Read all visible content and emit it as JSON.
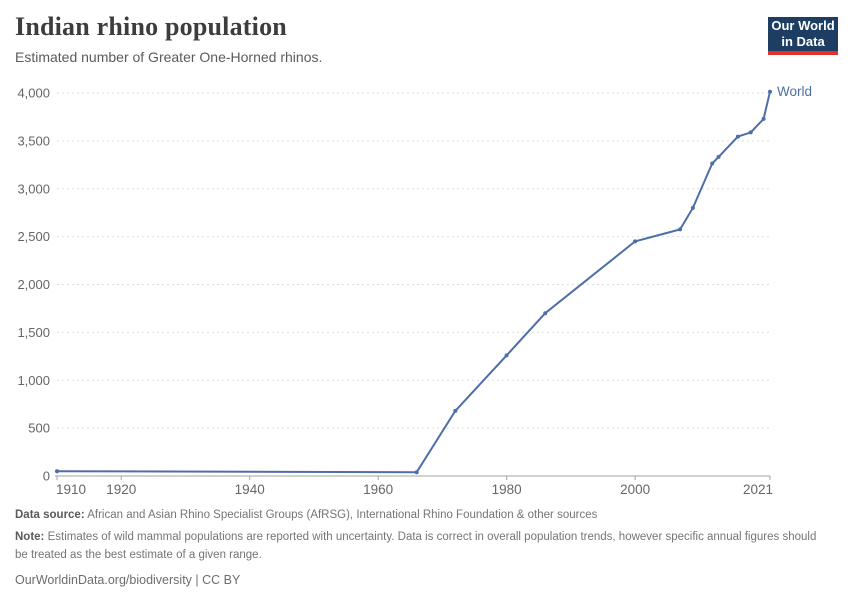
{
  "header": {
    "title": "Indian rhino population",
    "subtitle": "Estimated number of Greater One-Horned rhinos.",
    "logo": {
      "line1": "Our World",
      "line2": "in Data",
      "bg_color": "#1d3d63",
      "accent_color": "#e0342b"
    }
  },
  "chart_data": {
    "type": "line",
    "title": "Indian rhino population",
    "subtitle": "Estimated number of Greater One-Horned rhinos.",
    "xlabel": "",
    "ylabel": "",
    "xlim": [
      1910,
      2021
    ],
    "ylim": [
      0,
      4000
    ],
    "x_ticks": [
      1910,
      1920,
      1940,
      1960,
      1980,
      2000,
      2021
    ],
    "y_ticks": [
      0,
      500,
      1000,
      1500,
      2000,
      2500,
      3000,
      3500,
      4000
    ],
    "grid": "horizontal-dashed",
    "legend": "inline-label-at-line-end",
    "series": [
      {
        "name": "World",
        "color": "#4c6ea9",
        "points": [
          [
            1910,
            50
          ],
          [
            1966,
            40
          ],
          [
            1972,
            680
          ],
          [
            1980,
            1260
          ],
          [
            1986,
            1700
          ],
          [
            2000,
            2450
          ],
          [
            2007,
            2575
          ],
          [
            2009,
            2800
          ],
          [
            2012,
            3264
          ],
          [
            2013,
            3333
          ],
          [
            2016,
            3545
          ],
          [
            2018,
            3588
          ],
          [
            2020,
            3730
          ],
          [
            2021,
            4014
          ]
        ]
      }
    ],
    "style": {
      "gridline_color": "#dedede",
      "zero_line_color": "#a3a3a3",
      "tick_label_color": "#666666"
    }
  },
  "footer": {
    "data_source_label": "Data source:",
    "data_source_text": " African and Asian Rhino Specialist Groups (AfRSG), International Rhino Foundation & other sources",
    "note_label": "Note:",
    "note_text": " Estimates of wild mammal populations are reported with uncertainty. Data is correct in overall population trends, however specific annual figures should be treated as the best estimate of a given range.",
    "license_text": "OurWorldinData.org/biodiversity | CC BY"
  }
}
